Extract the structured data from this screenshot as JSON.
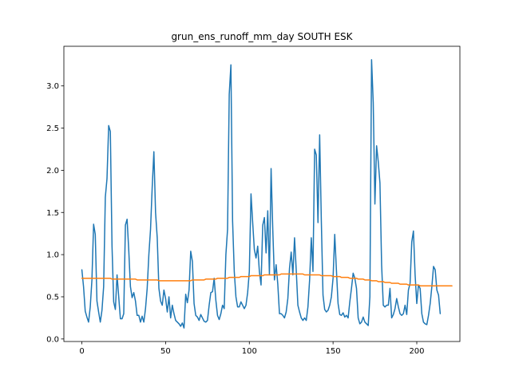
{
  "chart_data": {
    "type": "line",
    "title": "grun_ens_runoff_mm_day SOUTH ESK",
    "xlabel": "",
    "ylabel": "",
    "xlim": [
      -10.75,
      225.75
    ],
    "ylim": [
      -0.03,
      3.47
    ],
    "x_ticks": [
      0,
      50,
      100,
      150,
      200
    ],
    "x_tick_labels": [
      "0",
      "50",
      "100",
      "150",
      "200"
    ],
    "y_ticks": [
      0.0,
      0.5,
      1.0,
      1.5,
      2.0,
      2.5,
      3.0
    ],
    "y_tick_labels": [
      "0.0",
      "0.5",
      "1.0",
      "1.5",
      "2.0",
      "2.5",
      "3.0"
    ],
    "grid": false,
    "legend": "none",
    "series": [
      {
        "color": "#1f77b4",
        "values": [
          0.82,
          0.62,
          0.33,
          0.26,
          0.2,
          0.38,
          0.7,
          1.36,
          1.24,
          0.45,
          0.32,
          0.2,
          0.34,
          0.62,
          1.68,
          1.9,
          2.53,
          2.46,
          1.1,
          0.44,
          0.35,
          0.76,
          0.5,
          0.24,
          0.24,
          0.3,
          1.35,
          1.42,
          1.05,
          0.62,
          0.49,
          0.55,
          0.45,
          0.28,
          0.28,
          0.2,
          0.27,
          0.2,
          0.36,
          0.6,
          1.0,
          1.3,
          1.8,
          2.22,
          1.5,
          1.2,
          0.6,
          0.45,
          0.4,
          0.58,
          0.48,
          0.32,
          0.5,
          0.25,
          0.4,
          0.3,
          0.22,
          0.2,
          0.18,
          0.15,
          0.19,
          0.13,
          0.53,
          0.43,
          0.58,
          1.04,
          0.92,
          0.42,
          0.28,
          0.26,
          0.22,
          0.29,
          0.25,
          0.21,
          0.2,
          0.22,
          0.4,
          0.55,
          0.56,
          0.72,
          0.46,
          0.28,
          0.23,
          0.3,
          0.4,
          0.36,
          1.0,
          1.3,
          2.9,
          3.25,
          1.4,
          0.8,
          0.5,
          0.38,
          0.38,
          0.44,
          0.4,
          0.36,
          0.4,
          0.55,
          0.8,
          1.72,
          1.38,
          1.06,
          0.96,
          1.1,
          0.8,
          0.64,
          1.35,
          1.44,
          1.02,
          1.52,
          0.76,
          2.02,
          1.3,
          0.7,
          0.88,
          0.65,
          0.3,
          0.3,
          0.28,
          0.25,
          0.32,
          0.48,
          0.84,
          1.03,
          0.76,
          1.2,
          0.82,
          0.4,
          0.32,
          0.25,
          0.22,
          0.25,
          0.22,
          0.38,
          0.7,
          1.2,
          0.8,
          2.25,
          2.18,
          1.38,
          2.42,
          1.4,
          0.52,
          0.35,
          0.32,
          0.34,
          0.4,
          0.5,
          0.72,
          1.24,
          0.82,
          0.42,
          0.29,
          0.28,
          0.31,
          0.26,
          0.28,
          0.25,
          0.44,
          0.6,
          0.78,
          0.72,
          0.6,
          0.25,
          0.18,
          0.2,
          0.26,
          0.2,
          0.18,
          0.16,
          0.5,
          3.31,
          2.8,
          1.6,
          2.29,
          2.1,
          1.85,
          0.88,
          0.4,
          0.38,
          0.4,
          0.4,
          0.6,
          0.25,
          0.29,
          0.36,
          0.48,
          0.38,
          0.3,
          0.28,
          0.3,
          0.4,
          0.29,
          0.58,
          0.66,
          1.15,
          1.28,
          0.76,
          0.42,
          0.64,
          0.6,
          0.3,
          0.2,
          0.18,
          0.17,
          0.28,
          0.42,
          0.62,
          0.86,
          0.82,
          0.58,
          0.52,
          0.3
        ]
      },
      {
        "color": "#ff7f0e",
        "values": [
          0.72,
          0.72,
          0.72,
          0.72,
          0.72,
          0.72,
          0.72,
          0.72,
          0.72,
          0.72,
          0.72,
          0.72,
          0.72,
          0.72,
          0.72,
          0.72,
          0.72,
          0.72,
          0.71,
          0.71,
          0.71,
          0.71,
          0.71,
          0.71,
          0.71,
          0.71,
          0.71,
          0.71,
          0.71,
          0.71,
          0.71,
          0.71,
          0.71,
          0.7,
          0.7,
          0.7,
          0.7,
          0.7,
          0.7,
          0.7,
          0.7,
          0.7,
          0.7,
          0.7,
          0.7,
          0.7,
          0.69,
          0.69,
          0.69,
          0.69,
          0.69,
          0.69,
          0.69,
          0.69,
          0.69,
          0.69,
          0.69,
          0.69,
          0.69,
          0.69,
          0.69,
          0.69,
          0.69,
          0.69,
          0.69,
          0.69,
          0.7,
          0.7,
          0.7,
          0.7,
          0.7,
          0.7,
          0.7,
          0.7,
          0.71,
          0.71,
          0.71,
          0.71,
          0.71,
          0.71,
          0.71,
          0.72,
          0.72,
          0.72,
          0.72,
          0.72,
          0.72,
          0.72,
          0.73,
          0.73,
          0.73,
          0.73,
          0.73,
          0.73,
          0.73,
          0.74,
          0.74,
          0.74,
          0.74,
          0.74,
          0.74,
          0.75,
          0.75,
          0.75,
          0.75,
          0.75,
          0.75,
          0.75,
          0.75,
          0.76,
          0.76,
          0.76,
          0.76,
          0.76,
          0.76,
          0.76,
          0.76,
          0.76,
          0.76,
          0.77,
          0.77,
          0.77,
          0.77,
          0.77,
          0.77,
          0.77,
          0.77,
          0.77,
          0.77,
          0.77,
          0.77,
          0.77,
          0.77,
          0.76,
          0.76,
          0.76,
          0.76,
          0.76,
          0.76,
          0.76,
          0.76,
          0.76,
          0.76,
          0.75,
          0.75,
          0.75,
          0.75,
          0.75,
          0.75,
          0.75,
          0.74,
          0.74,
          0.74,
          0.74,
          0.74,
          0.73,
          0.73,
          0.73,
          0.73,
          0.73,
          0.72,
          0.72,
          0.72,
          0.72,
          0.72,
          0.71,
          0.71,
          0.71,
          0.71,
          0.7,
          0.7,
          0.7,
          0.7,
          0.69,
          0.69,
          0.69,
          0.69,
          0.68,
          0.68,
          0.68,
          0.68,
          0.67,
          0.67,
          0.67,
          0.67,
          0.66,
          0.66,
          0.66,
          0.66,
          0.66,
          0.65,
          0.65,
          0.65,
          0.65,
          0.65,
          0.64,
          0.64,
          0.64,
          0.64,
          0.64,
          0.64,
          0.64,
          0.63,
          0.63,
          0.63,
          0.63,
          0.63,
          0.63,
          0.63,
          0.63,
          0.63,
          0.63,
          0.63,
          0.63,
          0.63,
          0.63,
          0.63,
          0.63,
          0.63,
          0.63,
          0.63,
          0.63
        ]
      }
    ]
  }
}
